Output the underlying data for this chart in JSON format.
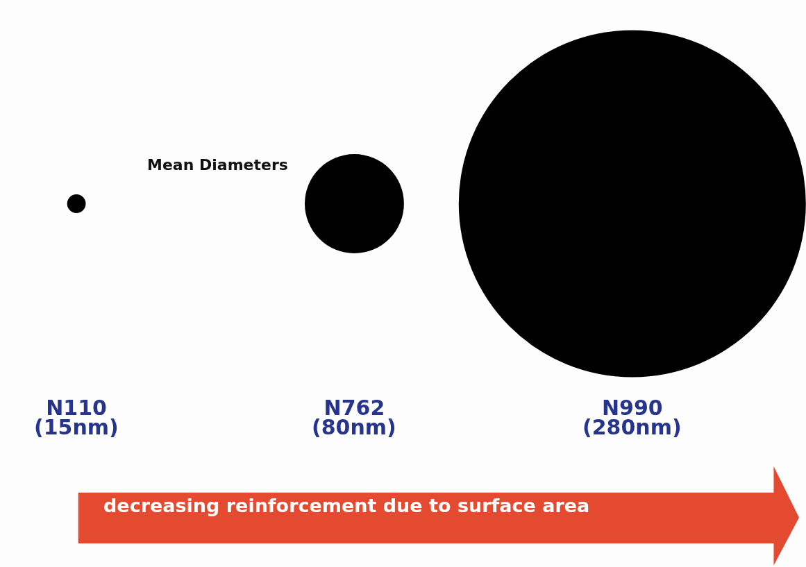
{
  "chart_data": {
    "type": "other",
    "title": "Mean Diameters",
    "categories": [
      "N110",
      "N762",
      "N990"
    ],
    "values": [
      15,
      80,
      280
    ],
    "value_labels": [
      "(15nm)",
      "(80nm)",
      "(280nm)"
    ],
    "color": "#000000",
    "annotations": [
      "decreasing reinforcement due to surface area"
    ]
  }
}
